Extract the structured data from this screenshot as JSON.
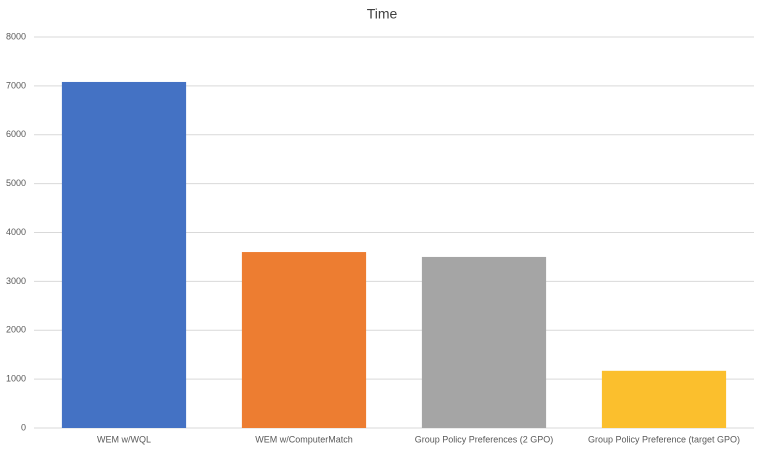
{
  "chart_data": {
    "type": "bar",
    "title": "Time",
    "categories": [
      "WEM w/WQL",
      "WEM w/ComputerMatch",
      "Group Policy Preferences (2 GPO)",
      "Group Policy Preference (target GPO)"
    ],
    "values": [
      7080,
      3600,
      3500,
      1170
    ],
    "colors": [
      "#4472c4",
      "#ed7d31",
      "#a5a5a5",
      "#fbbf2d"
    ],
    "ylim": [
      0,
      8000
    ],
    "yticks": [
      0,
      1000,
      2000,
      3000,
      4000,
      5000,
      6000,
      7000,
      8000
    ],
    "grid": true
  }
}
